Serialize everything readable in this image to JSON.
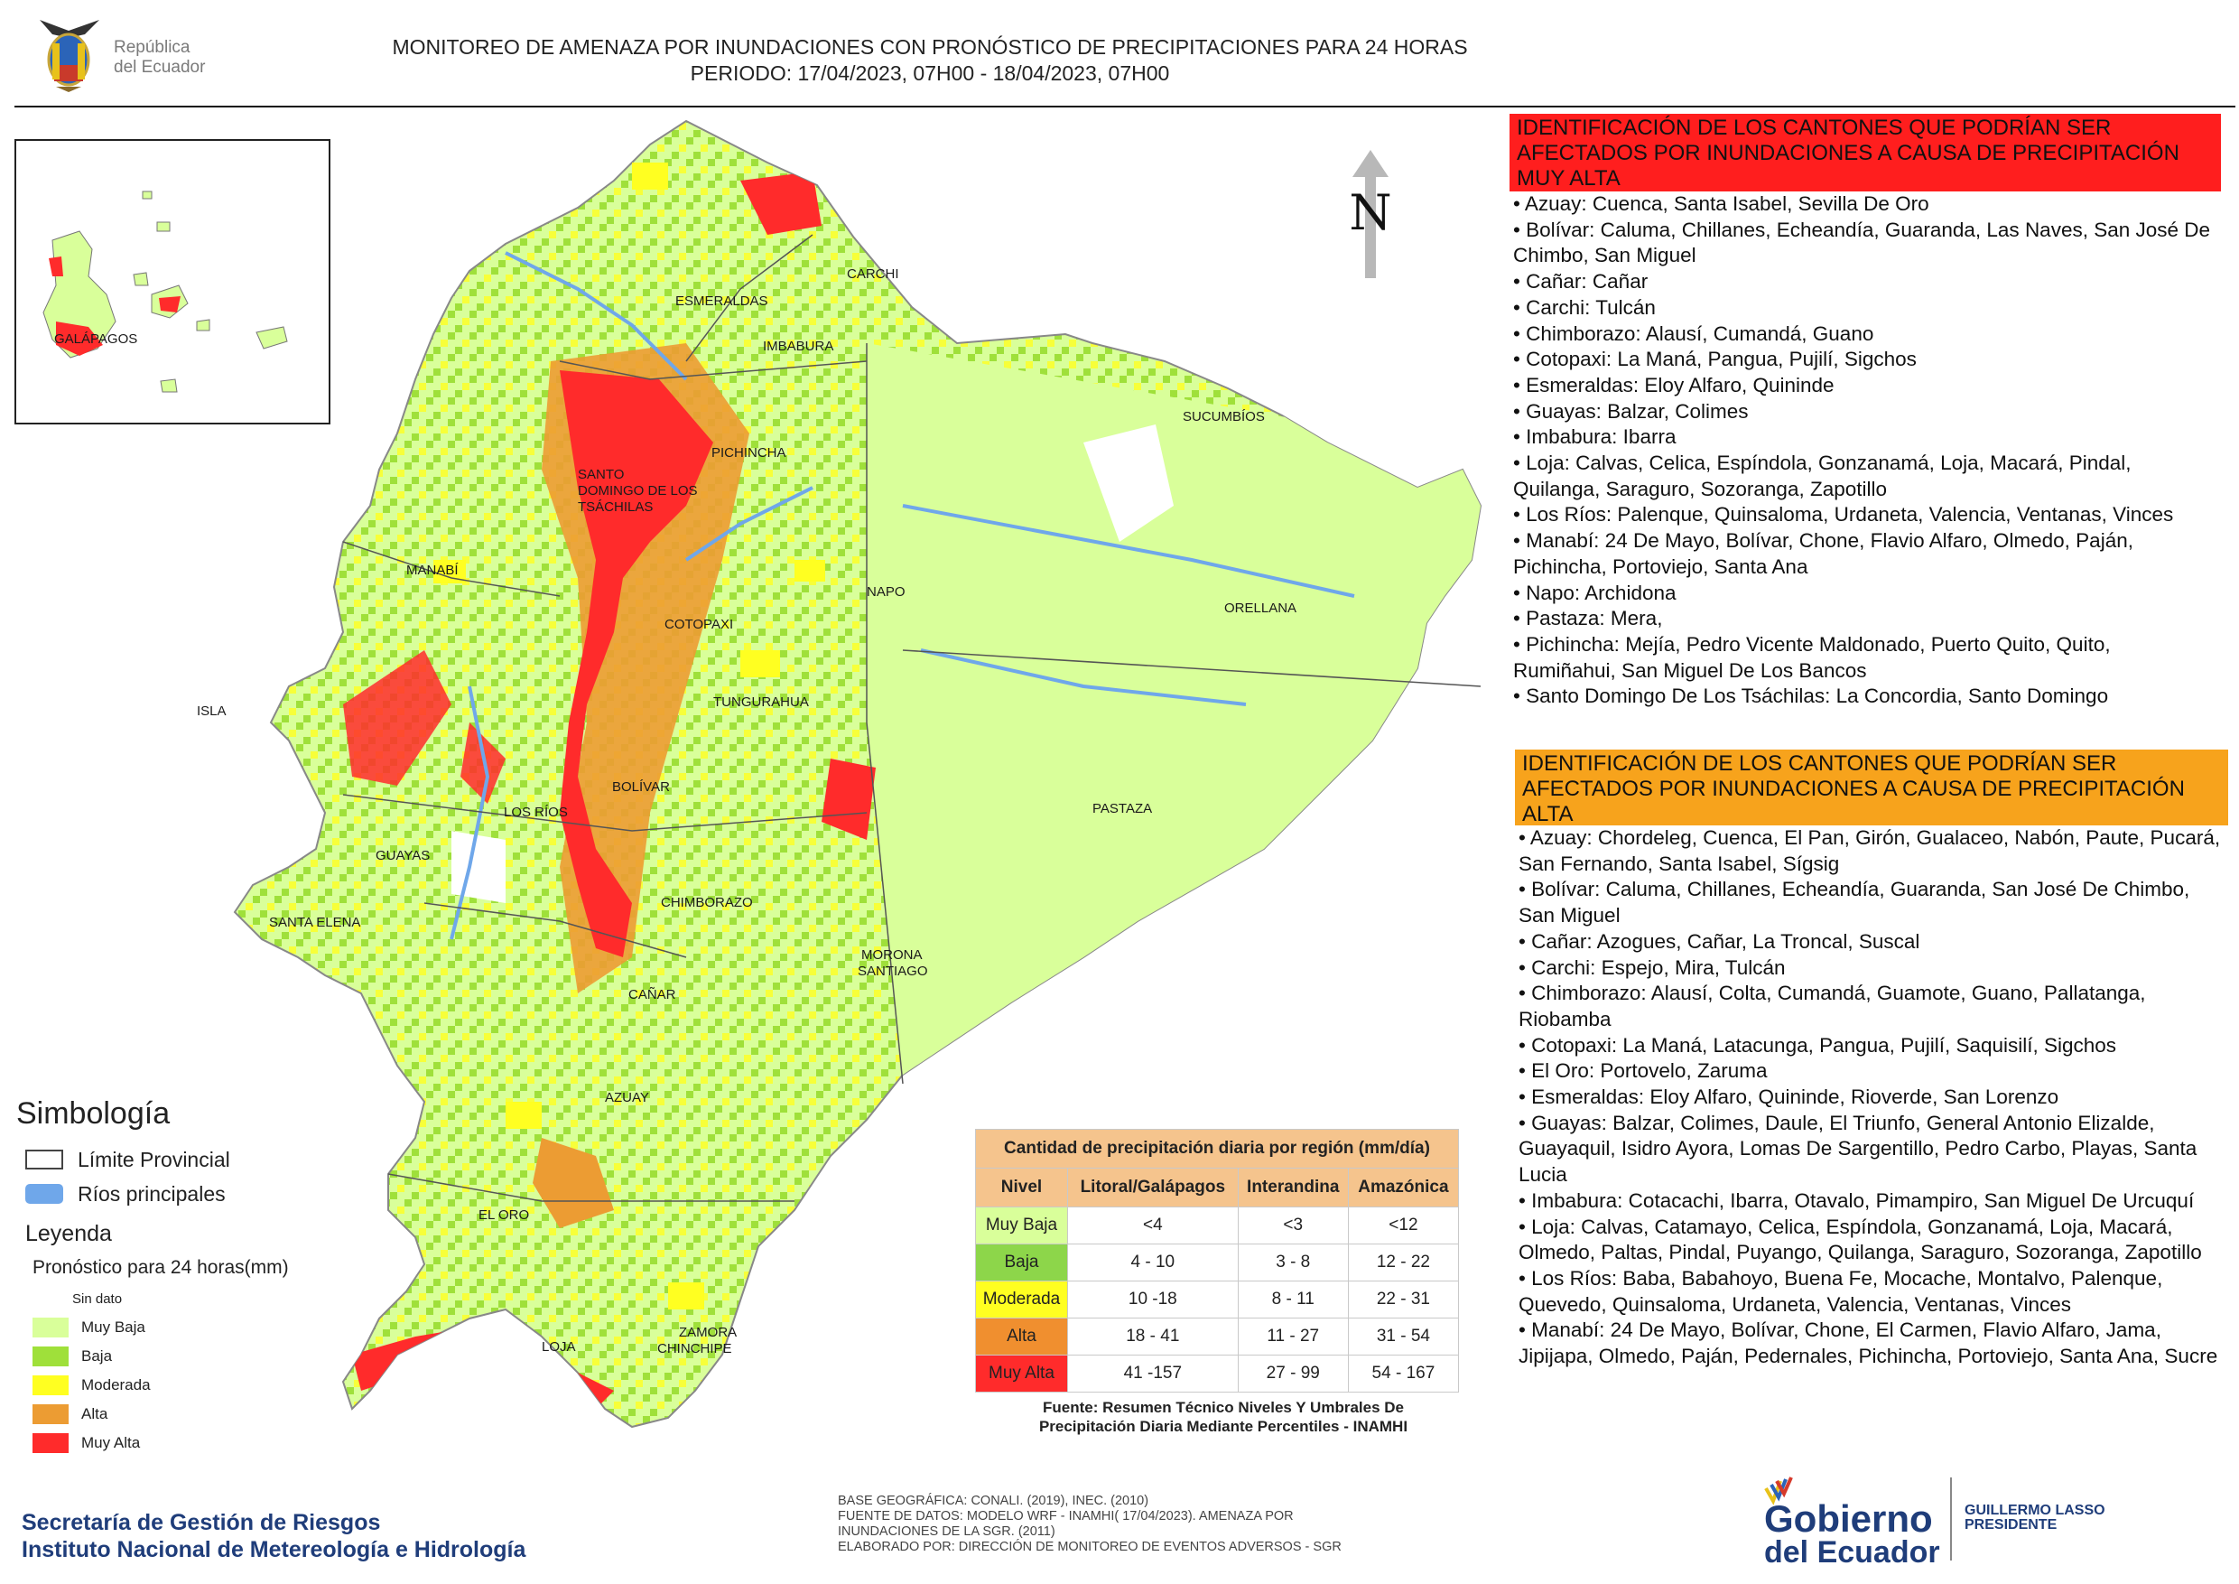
{
  "header": {
    "country_logo_text_1": "República",
    "country_logo_text_2": "del Ecuador",
    "title_line1": "MONITOREO DE AMENAZA POR INUNDACIONES  CON PRONÓSTICO DE  PRECIPITACIONES PARA 24 HORAS",
    "title_line2": "PERIODO: 17/04/2023, 07H00 - 18/04/2023, 07H00"
  },
  "map": {
    "north_label": "N",
    "inset_label": "GALÁPAGOS",
    "province_labels": [
      "CARCHI",
      "ESMERALDAS",
      "IMBABURA",
      "SUCUMBÍOS",
      "PICHINCHA",
      "SANTO",
      "DOMINGO DE LOS",
      "TSÁCHILAS",
      "MANABÍ",
      "NAPO",
      "ORELLANA",
      "COTOPAXI",
      "TUNGURAHUA",
      "ISLA",
      "BOLÍVAR",
      "LOS RÍOS",
      "PASTAZA",
      "GUAYAS",
      "CHIMBORAZO",
      "SANTA ELENA",
      "MORONA",
      "SANTIAGO",
      "CAÑAR",
      "AZUAY",
      "EL ORO",
      "ZAMORA",
      "CHINCHIPE",
      "LOJA"
    ],
    "colors": {
      "sin_dato": "#ffffff",
      "muy_baja": "#d9ff9a",
      "baja": "#9fe03a",
      "moderada": "#ffff21",
      "alta": "#ec9c33",
      "muy_alta": "#ff2b2b",
      "rivers": "#6fa7ea"
    }
  },
  "legend": {
    "title": "Simbología",
    "limite": "Límite Provincial",
    "rios": "Ríos principales",
    "leyenda": "Leyenda",
    "pronostico": "Pronóstico para 24 horas(mm)",
    "classes": [
      "Sin dato",
      "Muy Baja",
      "Baja",
      "Moderada",
      "Alta",
      "Muy Alta"
    ]
  },
  "table": {
    "caption": "Cantidad de precipitación diaria por región (mm/día)",
    "headers": [
      "Nivel",
      "Litoral/Galápagos",
      "Interandina",
      "Amazónica"
    ],
    "rows": [
      {
        "nivel": "Muy Baja",
        "litoral": "<4",
        "interandina": "<3",
        "amazonica": "<12",
        "color": "#d9ff9a"
      },
      {
        "nivel": "Baja",
        "litoral": "4 - 10",
        "interandina": "3 - 8",
        "amazonica": "12 - 22",
        "color": "#8dd64a"
      },
      {
        "nivel": "Moderada",
        "litoral": "10 -18",
        "interandina": "8 - 11",
        "amazonica": "22 - 31",
        "color": "#ffff21"
      },
      {
        "nivel": "Alta",
        "litoral": "18 - 41",
        "interandina": "11 - 27",
        "amazonica": "31 - 54",
        "color": "#f08f2f"
      },
      {
        "nivel": "Muy Alta",
        "litoral": "41 -157",
        "interandina": "27 - 99",
        "amazonica": "54 - 167",
        "color": "#ff2b2b"
      }
    ],
    "source_line1": "Fuente: Resumen Técnico Niveles Y Umbrales De",
    "source_line2": "Precipitación Diaria Mediante Percentiles - INAMHI"
  },
  "panel": {
    "muy_alta_title": "IDENTIFICACIÓN DE LOS CANTONES QUE PODRÍAN SER AFECTADOS POR INUNDACIONES  A CAUSA DE PRECIPITACIÓN MUY ALTA",
    "muy_alta_items": [
      "• Azuay: Cuenca, Santa Isabel, Sevilla De Oro",
      "• Bolívar: Caluma, Chillanes, Echeandía, Guaranda, Las Naves, San José De Chimbo, San Miguel",
      "• Cañar: Cañar",
      "• Carchi: Tulcán",
      "• Chimborazo: Alausí, Cumandá, Guano",
      "• Cotopaxi: La Maná, Pangua, Pujilí, Sigchos",
      "• Esmeraldas: Eloy Alfaro, Quininde",
      "• Guayas: Balzar, Colimes",
      "• Imbabura: Ibarra",
      "• Loja: Calvas, Celica, Espíndola, Gonzanamá, Loja, Macará, Pindal, Quilanga, Saraguro, Sozoranga, Zapotillo",
      "• Los Ríos: Palenque, Quinsaloma, Urdaneta, Valencia, Ventanas, Vinces",
      "• Manabí: 24 De Mayo, Bolívar, Chone, Flavio Alfaro, Olmedo, Paján, Pichincha, Portoviejo, Santa Ana",
      "• Napo: Archidona",
      "• Pastaza: Mera,",
      "• Pichincha: Mejía, Pedro Vicente Maldonado, Puerto Quito, Quito, Rumiñahui, San Miguel De Los Bancos",
      "• Santo Domingo De Los Tsáchilas: La Concordia, Santo Domingo"
    ],
    "alta_title": "IDENTIFICACIÓN DE LOS CANTONES QUE  PODRÍAN SER AFECTADOS POR INUNDACIONES  A CAUSA DE PRECIPITACIÓN ALTA",
    "alta_items": [
      "• Azuay: Chordeleg, Cuenca, El Pan, Girón, Gualaceo, Nabón, Paute, Pucará, San Fernando, Santa Isabel, Sígsig",
      "• Bolívar: Caluma, Chillanes, Echeandía, Guaranda, San José De Chimbo, San Miguel",
      "• Cañar: Azogues, Cañar, La Troncal, Suscal",
      "• Carchi: Espejo, Mira, Tulcán",
      "• Chimborazo: Alausí, Colta, Cumandá, Guamote, Guano, Pallatanga, Riobamba",
      "• Cotopaxi: La Maná, Latacunga, Pangua, Pujilí, Saquisilí, Sigchos",
      "• El Oro: Portovelo, Zaruma",
      "• Esmeraldas: Eloy Alfaro, Quininde, Rioverde, San Lorenzo",
      "• Guayas: Balzar, Colimes, Daule, El Triunfo, General Antonio Elizalde, Guayaquil, Isidro Ayora, Lomas De Sargentillo, Pedro Carbo, Playas, Santa Lucia",
      "• Imbabura: Cotacachi, Ibarra, Otavalo, Pimampiro, San Miguel De Urcuquí",
      "• Loja: Calvas, Catamayo, Celica, Espíndola, Gonzanamá, Loja, Macará, Olmedo, Paltas, Pindal, Puyango, Quilanga, Saraguro, Sozoranga, Zapotillo",
      "• Los Ríos: Baba, Babahoyo, Buena Fe, Mocache, Montalvo, Palenque, Quevedo, Quinsaloma, Urdaneta, Valencia, Ventanas, Vinces",
      "• Manabí: 24 De Mayo, Bolívar, Chone, El Carmen, Flavio Alfaro, Jama, Jipijapa, Olmedo, Paján, Pedernales, Pichincha, Portoviejo, Santa Ana, Sucre"
    ]
  },
  "footer": {
    "org_line1": "Secretaría de Gestión de Riesgos",
    "org_line2": "Instituto Nacional de Metereología e Hidrología",
    "credits": [
      "BASE GEOGRÁFICA: CONALI. (2019), INEC. (2010)",
      "FUENTE DE DATOS: MODELO WRF - INAMHI( 17/04/2023).  AMENAZA POR",
      "INUNDACIONES DE LA SGR. (2011)",
      "ELABORADO POR: DIRECCIÓN DE MONITOREO DE EVENTOS ADVERSOS - SGR"
    ],
    "gob_line1": "Gobierno",
    "gob_line2": "del Ecuador",
    "pres_line1": "GUILLERMO LASSO",
    "pres_line2": "PRESIDENTE"
  }
}
